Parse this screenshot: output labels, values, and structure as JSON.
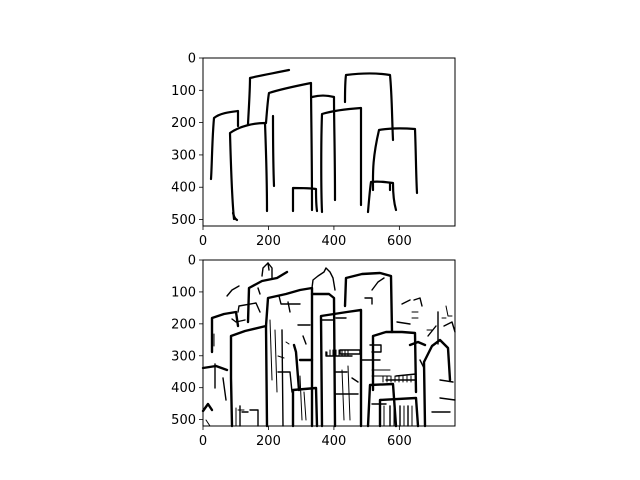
{
  "chart_data": [
    {
      "type": "image",
      "panel": "top",
      "content": "line sketch of city skyline (tall buildings outlined)",
      "xlim": [
        0,
        770
      ],
      "ylim": [
        520,
        0
      ],
      "xticks": [
        0,
        200,
        400,
        600
      ],
      "yticks": [
        0,
        100,
        200,
        300,
        400,
        500
      ],
      "stroke_color": "#000000",
      "background": "#ffffff"
    },
    {
      "type": "image",
      "panel": "bottom",
      "content": "detailed black-and-white edge drawing of a dense city skyline",
      "xlim": [
        0,
        770
      ],
      "ylim": [
        520,
        0
      ],
      "xticks": [
        0,
        200,
        400,
        600
      ],
      "yticks": [
        0,
        100,
        200,
        300,
        400,
        500
      ],
      "stroke_color": "#000000",
      "background": "#ffffff"
    }
  ]
}
